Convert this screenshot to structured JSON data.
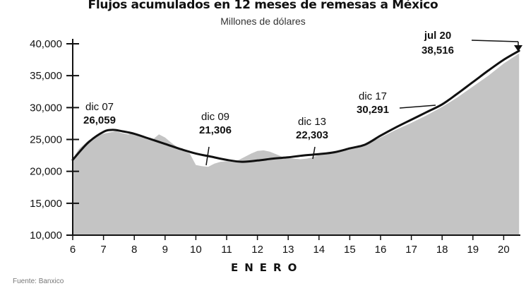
{
  "chart_data": {
    "type": "area",
    "title": "Flujos acumulados en 12 meses de remesas a México",
    "subtitle": "Millones de dólares",
    "xlabel": "ENERO",
    "ylabel": "",
    "xlim": [
      6,
      20.5
    ],
    "ylim": [
      10000,
      41500
    ],
    "x_ticks": [
      6,
      7,
      8,
      9,
      10,
      11,
      12,
      13,
      14,
      15,
      16,
      17,
      18,
      19,
      20
    ],
    "y_ticks": [
      10000,
      15000,
      20000,
      25000,
      30000,
      35000,
      40000
    ],
    "y_tick_labels": [
      "10,000",
      "15,000",
      "20,000",
      "25,000",
      "30,000",
      "35,000",
      "40,000"
    ],
    "area_series": {
      "x": [
        6.0,
        6.2,
        6.5,
        6.8,
        7.0,
        7.2,
        7.4,
        7.6,
        7.8,
        8.0,
        8.2,
        8.4,
        8.6,
        8.8,
        9.0,
        9.2,
        9.4,
        9.6,
        9.8,
        10.0,
        10.2,
        10.4,
        10.6,
        10.8,
        11.0,
        11.2,
        11.4,
        11.6,
        11.8,
        12.0,
        12.2,
        12.4,
        12.6,
        12.8,
        13.0,
        13.2,
        13.4,
        13.6,
        13.8,
        14.0,
        14.5,
        15.0,
        15.5,
        16.0,
        16.5,
        17.0,
        17.5,
        18.0,
        18.5,
        19.0,
        19.5,
        20.0,
        20.5
      ],
      "values": [
        22000,
        23500,
        24800,
        25600,
        25900,
        26100,
        26300,
        26000,
        25800,
        26000,
        25600,
        25300,
        25000,
        25800,
        25300,
        24500,
        23800,
        23200,
        22800,
        21000,
        20800,
        20700,
        21200,
        21500,
        21600,
        21500,
        21800,
        22300,
        22800,
        23200,
        23300,
        23100,
        22700,
        22300,
        22100,
        22000,
        21900,
        22000,
        22200,
        22600,
        23200,
        23600,
        24200,
        25300,
        26500,
        27600,
        28800,
        30100,
        31600,
        33300,
        35000,
        36900,
        38500
      ]
    },
    "trend_line": {
      "x": [
        6.0,
        6.5,
        7.0,
        7.3,
        7.6,
        8.0,
        8.5,
        9.0,
        9.5,
        10.0,
        10.5,
        11.0,
        11.5,
        12.0,
        12.5,
        13.0,
        13.5,
        14.0,
        14.5,
        15.0,
        15.5,
        16.0,
        16.5,
        17.0,
        17.5,
        18.0,
        18.5,
        19.0,
        19.5,
        20.0,
        20.5
      ],
      "values": [
        21800,
        24500,
        26200,
        26500,
        26300,
        25900,
        25100,
        24300,
        23500,
        22800,
        22300,
        21800,
        21500,
        21700,
        22000,
        22200,
        22500,
        22700,
        23000,
        23600,
        24200,
        25600,
        26900,
        28100,
        29300,
        30500,
        32200,
        34000,
        35800,
        37500,
        38900
      ]
    },
    "annotations": [
      {
        "label": "dic 07",
        "value": "26,059",
        "x": 7.5,
        "y": 26059
      },
      {
        "label": "dic 09",
        "value": "21,306",
        "x": 10.5,
        "y": 21306
      },
      {
        "label": "dic 13",
        "value": "22,303",
        "x": 13.8,
        "y": 22303
      },
      {
        "label": "dic 17",
        "value": "30,291",
        "x": 17.8,
        "y": 30291
      },
      {
        "label": "jul 20",
        "value": "38,516",
        "x": 20.5,
        "y": 38516
      }
    ],
    "colors": {
      "area": "#c4c4c4",
      "line": "#111111",
      "axis": "#111111"
    }
  },
  "footer": "Fuente: Banxico"
}
